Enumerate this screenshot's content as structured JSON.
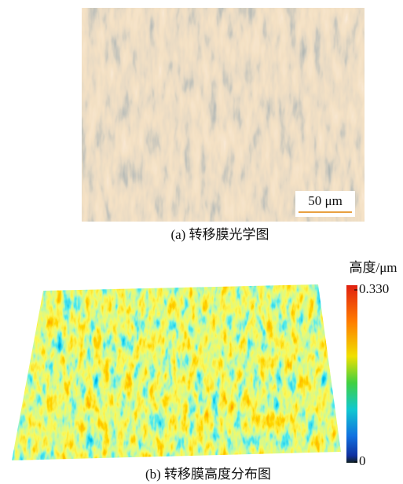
{
  "panel_a": {
    "scale_bar": "50 μm",
    "caption": "(a)  转移膜光学图"
  },
  "panel_b": {
    "caption": "(b)  转移膜高度分布图",
    "colorbar": {
      "title": "高度/μm",
      "ticks": [
        {
          "value": 0.33,
          "label": "0.330"
        },
        0
      ]
    }
  }
}
